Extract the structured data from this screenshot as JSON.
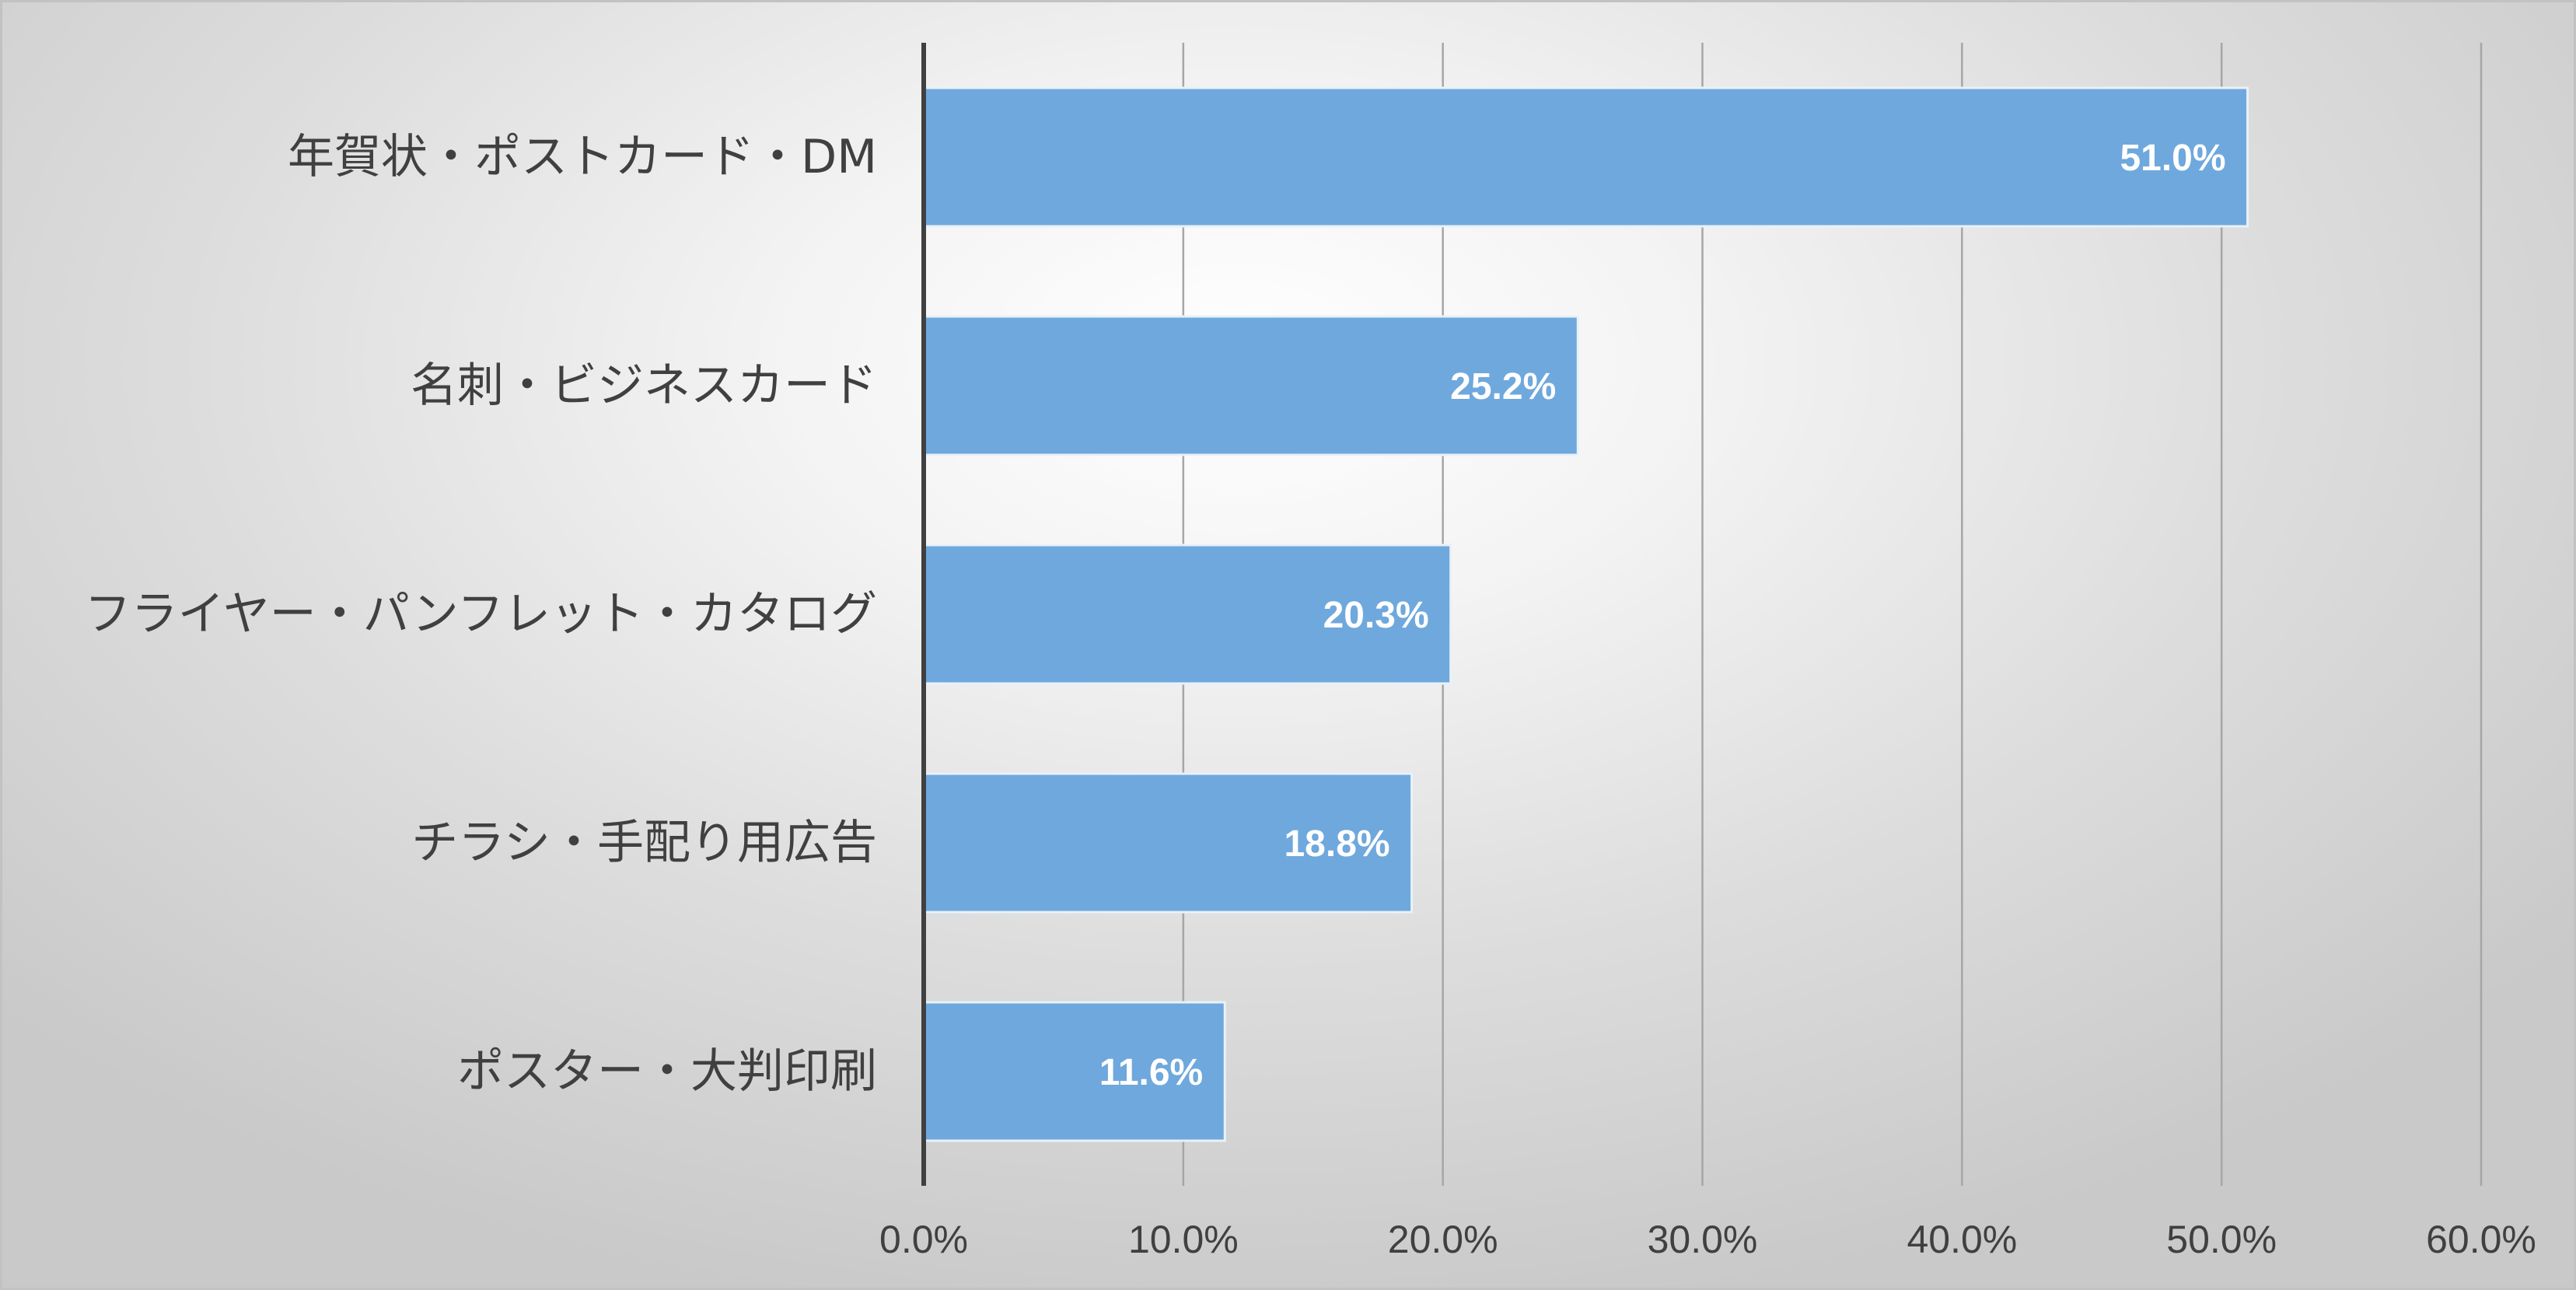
{
  "chart_data": {
    "type": "bar",
    "orientation": "horizontal",
    "categories": [
      "年賀状・ポストカード・DM",
      "名刺・ビジネスカード",
      "フライヤー・パンフレット・カタログ",
      "チラシ・手配り用広告",
      "ポスター・大判印刷"
    ],
    "values": [
      51.0,
      25.2,
      20.3,
      18.8,
      11.6
    ],
    "data_labels": [
      "51.0%",
      "25.2%",
      "20.3%",
      "18.8%",
      "11.6%"
    ],
    "x_ticks": [
      "0.0%",
      "10.0%",
      "20.0%",
      "30.0%",
      "40.0%",
      "50.0%",
      "60.0%"
    ],
    "xlim": [
      0,
      60
    ],
    "title": "",
    "xlabel": "",
    "ylabel": "",
    "grid": "vertical",
    "legend": "none",
    "colors": {
      "bar": "#6fa8dc",
      "bar_edge": "#e8f1fa",
      "grid": "#a6a6a6",
      "axis": "#404040",
      "text": "#404040",
      "data_label": "#ffffff"
    }
  }
}
